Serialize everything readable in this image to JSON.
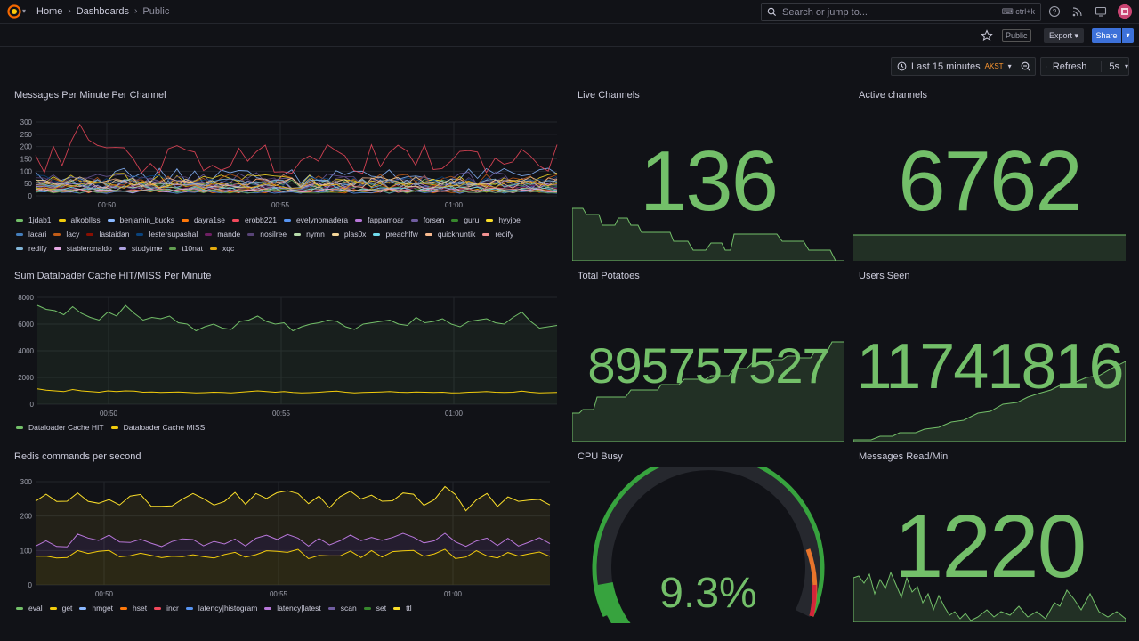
{
  "breadcrumb": {
    "home": "Home",
    "dashboards": "Dashboards",
    "current": "Public"
  },
  "search": {
    "placeholder": "Search or jump to...",
    "shortcut": "ctrl+k"
  },
  "toolbar": {
    "public_badge": "Public",
    "export_label": "Export",
    "share_label": "Share"
  },
  "time": {
    "range_label": "Last 15 minutes",
    "timezone": "AKST",
    "refresh_label": "Refresh",
    "refresh_interval": "5s"
  },
  "panels": {
    "messages_per_minute": {
      "title": "Messages Per Minute Per Channel",
      "y_ticks": [
        "300",
        "250",
        "200",
        "150",
        "100",
        "50",
        "0"
      ],
      "x_ticks": [
        "00:50",
        "00:55",
        "01:00"
      ],
      "legend": [
        {
          "name": "1jdab1",
          "color": "#73bf69"
        },
        {
          "name": "alkoblIss",
          "color": "#f2cc0c"
        },
        {
          "name": "benjamin_bucks",
          "color": "#8ab8ff"
        },
        {
          "name": "dayra1se",
          "color": "#ff780a"
        },
        {
          "name": "erobb221",
          "color": "#f2495c"
        },
        {
          "name": "evelynomadera",
          "color": "#5794f2"
        },
        {
          "name": "fappamoar",
          "color": "#b877d9"
        },
        {
          "name": "forsen",
          "color": "#705da0"
        },
        {
          "name": "guru",
          "color": "#37872d"
        },
        {
          "name": "hyyjoe",
          "color": "#fade2a"
        },
        {
          "name": "lacari",
          "color": "#447ebc"
        },
        {
          "name": "lacy",
          "color": "#c15c17"
        },
        {
          "name": "lastaidan",
          "color": "#890f02"
        },
        {
          "name": "lestersupashal",
          "color": "#0a437c"
        },
        {
          "name": "mande",
          "color": "#6d1f62"
        },
        {
          "name": "nosilree",
          "color": "#584477"
        },
        {
          "name": "nymn",
          "color": "#b7dbab"
        },
        {
          "name": "plas0x",
          "color": "#f4d598"
        },
        {
          "name": "preachlfw",
          "color": "#70dbed"
        },
        {
          "name": "quickhuntik",
          "color": "#f9ba8f"
        },
        {
          "name": "redify",
          "color": "#f29191"
        },
        {
          "name": "redify",
          "color": "#82b5d8"
        },
        {
          "name": "stableronaldo",
          "color": "#e5a8e2"
        },
        {
          "name": "studytme",
          "color": "#aea2e0"
        },
        {
          "name": "t10nat",
          "color": "#629e51"
        },
        {
          "name": "xqc",
          "color": "#e5ac0e"
        }
      ]
    },
    "live_channels": {
      "title": "Live Channels",
      "value": "136"
    },
    "active_channels": {
      "title": "Active channels",
      "value": "6762"
    },
    "dataloader": {
      "title": "Sum Dataloader Cache HIT/MISS Per Minute",
      "y_ticks": [
        "8000",
        "6000",
        "4000",
        "2000",
        "0"
      ],
      "x_ticks": [
        "00:50",
        "00:55",
        "01:00"
      ],
      "legend": [
        {
          "name": "Dataloader Cache HIT",
          "color": "#73bf69"
        },
        {
          "name": "Dataloader Cache MISS",
          "color": "#f2cc0c"
        }
      ]
    },
    "total_potatoes": {
      "title": "Total Potatoes",
      "value": "895757527"
    },
    "users_seen": {
      "title": "Users Seen",
      "value": "11741816"
    },
    "redis": {
      "title": "Redis commands per second",
      "y_ticks": [
        "300",
        "200",
        "100",
        "0"
      ],
      "x_ticks": [
        "00:50",
        "00:55",
        "01:00"
      ],
      "legend": [
        {
          "name": "eval",
          "color": "#73bf69"
        },
        {
          "name": "get",
          "color": "#f2cc0c"
        },
        {
          "name": "hmget",
          "color": "#8ab8ff"
        },
        {
          "name": "hset",
          "color": "#ff780a"
        },
        {
          "name": "incr",
          "color": "#f2495c"
        },
        {
          "name": "latency|histogram",
          "color": "#5794f2"
        },
        {
          "name": "latency|latest",
          "color": "#b877d9"
        },
        {
          "name": "scan",
          "color": "#705da0"
        },
        {
          "name": "set",
          "color": "#37872d"
        },
        {
          "name": "ttl",
          "color": "#fade2a"
        }
      ]
    },
    "cpu_busy": {
      "title": "CPU Busy",
      "value": "9.3%",
      "percent": 9.3
    },
    "messages_read": {
      "title": "Messages Read/Min",
      "value": "1220"
    }
  },
  "colors": {
    "accent_green": "#73bf69",
    "accent_yellow": "#f2cc0c",
    "brand_blue": "#3d71d9",
    "background": "#111217"
  }
}
